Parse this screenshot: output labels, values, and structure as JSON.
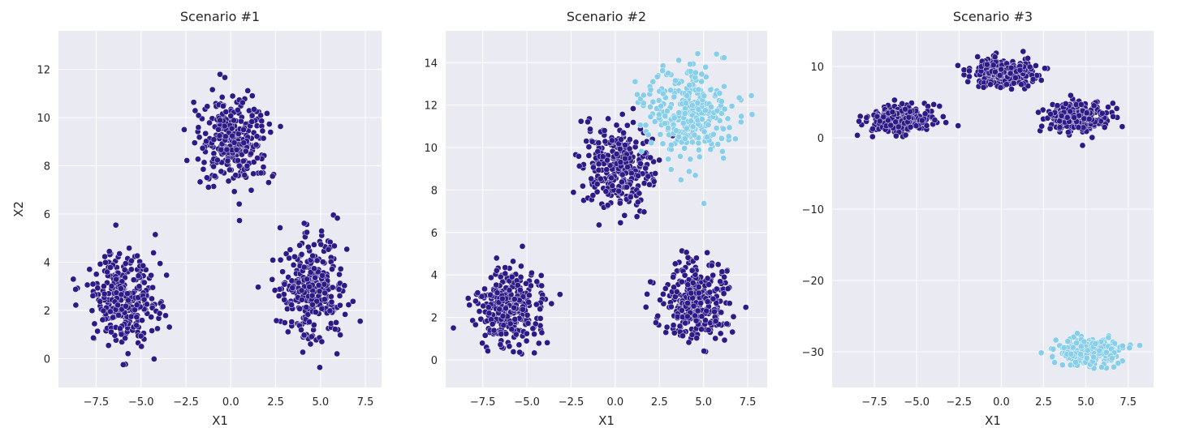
{
  "colors": {
    "background": "#eaeaf2",
    "grid": "#ffffff",
    "cluster_dark": "#2e1a87",
    "cluster_light": "#87ceeb",
    "marker_edge": "#ffffff"
  },
  "chart_data": [
    {
      "type": "scatter",
      "title": "Scenario #1",
      "xlabel": "X1",
      "ylabel": "X2",
      "xlim": [
        -9.6,
        8.4
      ],
      "ylim": [
        -1.2,
        13.6
      ],
      "xticks": [
        -7.5,
        -5.0,
        -2.5,
        0.0,
        2.5,
        5.0,
        7.5
      ],
      "xtick_labels": [
        "−7.5",
        "−5.0",
        "−2.5",
        "0.0",
        "2.5",
        "5.0",
        "7.5"
      ],
      "yticks": [
        0,
        2,
        4,
        6,
        8,
        10,
        12
      ],
      "ytick_labels": [
        "0",
        "2",
        "4",
        "6",
        "8",
        "10",
        "12"
      ],
      "grid": true,
      "clusters": [
        {
          "center": [
            -6.0,
            2.5
          ],
          "spread": [
            0.95,
            0.95
          ],
          "count": 300,
          "color": "#2e1a87"
        },
        {
          "center": [
            0.2,
            9.0
          ],
          "spread": [
            1.0,
            0.95
          ],
          "count": 300,
          "color": "#2e1a87"
        },
        {
          "center": [
            4.5,
            2.8
          ],
          "spread": [
            0.95,
            1.05
          ],
          "count": 300,
          "color": "#2e1a87"
        }
      ]
    },
    {
      "type": "scatter",
      "title": "Scenario #2",
      "xlabel": "X1",
      "ylabel": "",
      "xlim": [
        -9.6,
        8.6
      ],
      "ylim": [
        -1.3,
        15.5
      ],
      "xticks": [
        -7.5,
        -5.0,
        -2.5,
        0.0,
        2.5,
        5.0,
        7.5
      ],
      "xtick_labels": [
        "−7.5",
        "−5.0",
        "−2.5",
        "0.0",
        "2.5",
        "5.0",
        "7.5"
      ],
      "yticks": [
        0,
        2,
        4,
        6,
        8,
        10,
        12,
        14
      ],
      "ytick_labels": [
        "0",
        "2",
        "4",
        "6",
        "8",
        "10",
        "12",
        "14"
      ],
      "grid": true,
      "clusters": [
        {
          "center": [
            -6.0,
            2.5
          ],
          "spread": [
            0.95,
            0.95
          ],
          "count": 300,
          "color": "#2e1a87"
        },
        {
          "center": [
            0.2,
            9.0
          ],
          "spread": [
            1.0,
            0.95
          ],
          "count": 300,
          "color": "#2e1a87"
        },
        {
          "center": [
            4.5,
            2.8
          ],
          "spread": [
            0.95,
            1.05
          ],
          "count": 300,
          "color": "#2e1a87"
        },
        {
          "center": [
            4.2,
            11.6
          ],
          "spread": [
            1.3,
            1.1
          ],
          "count": 300,
          "color": "#87ceeb"
        }
      ]
    },
    {
      "type": "scatter",
      "title": "Scenario #3",
      "xlabel": "X1",
      "ylabel": "",
      "xlim": [
        -10.0,
        9.0
      ],
      "ylim": [
        -35.0,
        15.0
      ],
      "xticks": [
        -7.5,
        -5.0,
        -2.5,
        0.0,
        2.5,
        5.0,
        7.5
      ],
      "xtick_labels": [
        "−7.5",
        "−5.0",
        "−2.5",
        "0.0",
        "2.5",
        "5.0",
        "7.5"
      ],
      "yticks": [
        10,
        0,
        -10,
        -20,
        -30
      ],
      "ytick_labels": [
        "10",
        "0",
        "−10",
        "−20",
        "−30"
      ],
      "grid": true,
      "clusters": [
        {
          "center": [
            -6.0,
            2.5
          ],
          "spread": [
            0.95,
            0.95
          ],
          "count": 300,
          "color": "#2e1a87"
        },
        {
          "center": [
            0.2,
            9.0
          ],
          "spread": [
            1.0,
            0.95
          ],
          "count": 300,
          "color": "#2e1a87"
        },
        {
          "center": [
            4.5,
            2.8
          ],
          "spread": [
            0.95,
            1.05
          ],
          "count": 300,
          "color": "#2e1a87"
        },
        {
          "center": [
            5.2,
            -30.0
          ],
          "spread": [
            0.95,
            0.95
          ],
          "count": 300,
          "color": "#87ceeb"
        }
      ]
    }
  ]
}
